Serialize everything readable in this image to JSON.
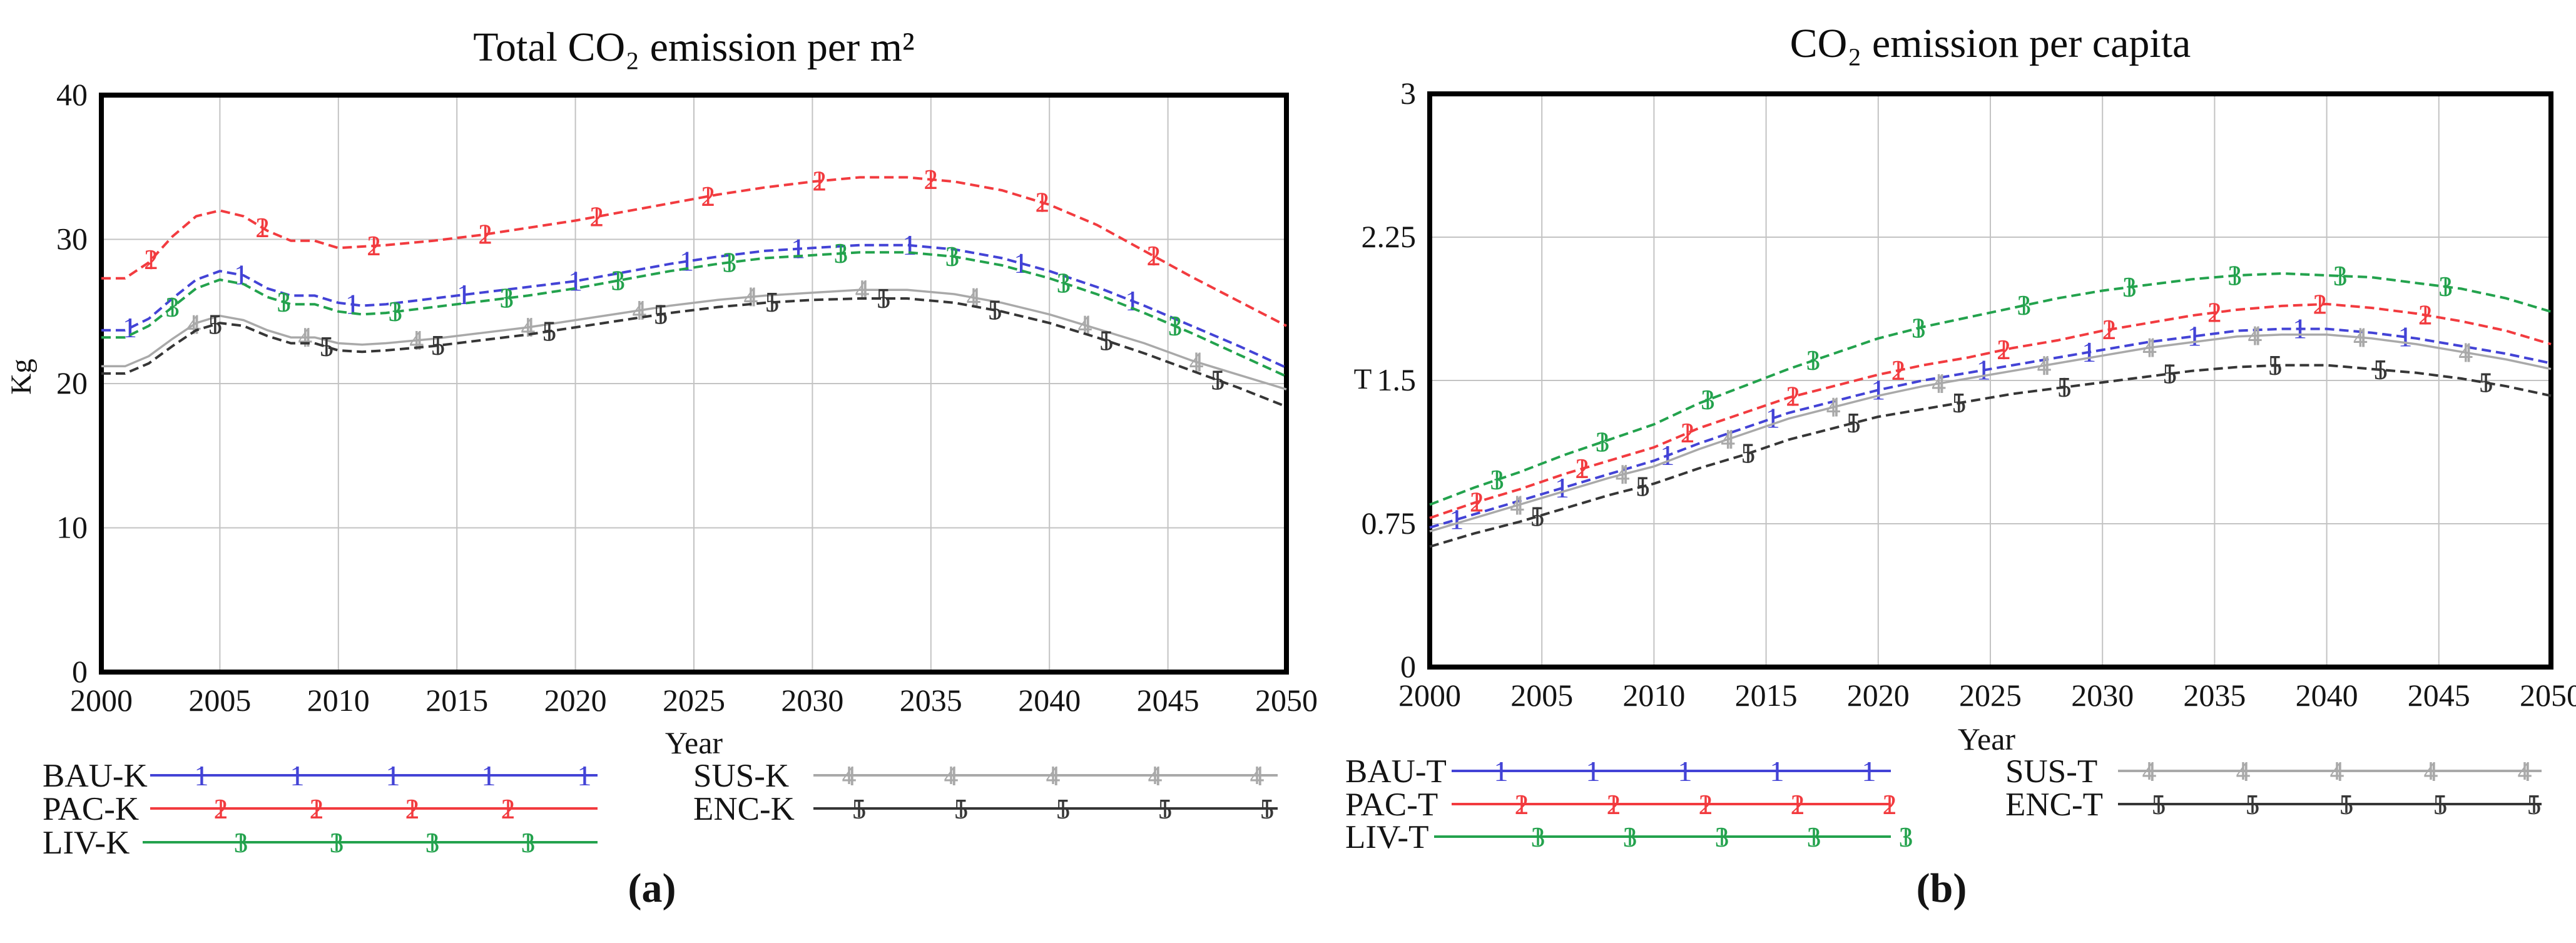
{
  "captions": {
    "a": "(a)",
    "b": "(b)"
  },
  "chart_data": [
    {
      "type": "line",
      "title": "Total CO₂ emission per m²",
      "xlabel": "Year",
      "ylabel": "Kg",
      "xlim": [
        2000,
        2050
      ],
      "ylim": [
        0,
        40
      ],
      "x_ticks": [
        2000,
        2005,
        2010,
        2015,
        2020,
        2025,
        2030,
        2035,
        2040,
        2045,
        2050
      ],
      "y_ticks": [
        0,
        10,
        20,
        30,
        40
      ],
      "grid": true,
      "legend_position": "below",
      "x": [
        2000,
        2001,
        2002,
        2003,
        2004,
        2005,
        2006,
        2007,
        2008,
        2009,
        2010,
        2011,
        2012,
        2014,
        2016,
        2018,
        2020,
        2022,
        2024,
        2026,
        2028,
        2030,
        2032,
        2034,
        2036,
        2038,
        2040,
        2042,
        2044,
        2046,
        2048,
        2050
      ],
      "series": [
        {
          "name": "BAU-K",
          "marker": "1",
          "color": "#4343d6",
          "values": [
            23.7,
            23.7,
            24.5,
            25.9,
            27.2,
            27.8,
            27.5,
            26.6,
            26.1,
            26.1,
            25.6,
            25.4,
            25.5,
            25.9,
            26.3,
            26.7,
            27.1,
            27.7,
            28.3,
            28.8,
            29.2,
            29.4,
            29.6,
            29.6,
            29.3,
            28.7,
            27.8,
            26.7,
            25.4,
            24.0,
            22.6,
            21.1
          ]
        },
        {
          "name": "PAC-K",
          "marker": "2",
          "color": "#f23b3f",
          "values": [
            27.3,
            27.3,
            28.4,
            30.2,
            31.6,
            32.0,
            31.6,
            30.6,
            29.9,
            29.9,
            29.4,
            29.5,
            29.6,
            29.9,
            30.3,
            30.8,
            31.3,
            31.9,
            32.5,
            33.1,
            33.6,
            34.0,
            34.3,
            34.3,
            34.0,
            33.4,
            32.4,
            31.0,
            29.2,
            27.4,
            25.7,
            24.0
          ]
        },
        {
          "name": "LIV-K",
          "marker": "3",
          "color": "#23a24d",
          "values": [
            23.2,
            23.2,
            24.0,
            25.3,
            26.6,
            27.2,
            26.9,
            26.0,
            25.5,
            25.5,
            25.0,
            24.8,
            24.9,
            25.3,
            25.7,
            26.1,
            26.6,
            27.2,
            27.8,
            28.3,
            28.7,
            28.9,
            29.1,
            29.1,
            28.8,
            28.2,
            27.3,
            26.2,
            24.9,
            23.5,
            22.0,
            20.5
          ]
        },
        {
          "name": "SUS-K",
          "marker": "4",
          "color": "#a9a9a9",
          "values": [
            21.2,
            21.2,
            21.9,
            23.1,
            24.2,
            24.7,
            24.4,
            23.7,
            23.2,
            23.2,
            22.8,
            22.7,
            22.8,
            23.1,
            23.5,
            23.9,
            24.4,
            24.9,
            25.4,
            25.8,
            26.1,
            26.3,
            26.5,
            26.5,
            26.2,
            25.6,
            24.8,
            23.8,
            22.8,
            21.6,
            20.6,
            19.6
          ]
        },
        {
          "name": "ENC-K",
          "marker": "5",
          "color": "#363636",
          "values": [
            20.7,
            20.7,
            21.4,
            22.6,
            23.7,
            24.2,
            24.0,
            23.3,
            22.8,
            22.8,
            22.3,
            22.2,
            22.3,
            22.6,
            23.0,
            23.4,
            23.9,
            24.4,
            24.9,
            25.3,
            25.6,
            25.8,
            25.9,
            25.9,
            25.6,
            25.0,
            24.2,
            23.2,
            22.1,
            20.9,
            19.7,
            18.4
          ]
        }
      ],
      "legend": [
        {
          "label": "BAU-K",
          "series": "BAU-K",
          "markers": 5,
          "column": 1
        },
        {
          "label": "PAC-K",
          "series": "PAC-K",
          "markers": 4,
          "column": 1
        },
        {
          "label": "LIV-K",
          "series": "LIV-K",
          "markers": 4,
          "column": 1
        },
        {
          "label": "SUS-K",
          "series": "SUS-K",
          "markers": 5,
          "column": 2
        },
        {
          "label": "ENC-K",
          "series": "ENC-K",
          "markers": 5,
          "column": 2
        }
      ]
    },
    {
      "type": "line",
      "title": "CO₂ emission per capita",
      "xlabel": "Year",
      "ylabel": "T",
      "xlim": [
        2000,
        2050
      ],
      "ylim": [
        0,
        3
      ],
      "x_ticks": [
        2000,
        2005,
        2010,
        2015,
        2020,
        2025,
        2030,
        2035,
        2040,
        2045,
        2050
      ],
      "y_ticks": [
        0,
        0.75,
        1.5,
        2.25,
        3
      ],
      "grid": true,
      "legend_position": "below",
      "x": [
        2000,
        2002,
        2004,
        2006,
        2008,
        2010,
        2012,
        2014,
        2016,
        2018,
        2020,
        2022,
        2024,
        2026,
        2028,
        2030,
        2032,
        2034,
        2036,
        2038,
        2040,
        2042,
        2044,
        2046,
        2048,
        2050
      ],
      "series": [
        {
          "name": "BAU-T",
          "marker": "1",
          "color": "#4343d6",
          "values": [
            0.73,
            0.8,
            0.87,
            0.94,
            1.01,
            1.08,
            1.17,
            1.25,
            1.33,
            1.39,
            1.45,
            1.5,
            1.54,
            1.58,
            1.62,
            1.66,
            1.7,
            1.73,
            1.76,
            1.77,
            1.77,
            1.75,
            1.72,
            1.68,
            1.64,
            1.59
          ]
        },
        {
          "name": "PAC-T",
          "marker": "2",
          "color": "#f23b3f",
          "values": [
            0.78,
            0.86,
            0.93,
            1.01,
            1.08,
            1.15,
            1.25,
            1.33,
            1.41,
            1.47,
            1.53,
            1.58,
            1.62,
            1.67,
            1.71,
            1.76,
            1.8,
            1.84,
            1.87,
            1.89,
            1.9,
            1.88,
            1.85,
            1.81,
            1.76,
            1.69
          ]
        },
        {
          "name": "LIV-T",
          "marker": "3",
          "color": "#23a24d",
          "values": [
            0.85,
            0.94,
            1.02,
            1.11,
            1.19,
            1.27,
            1.38,
            1.47,
            1.56,
            1.64,
            1.72,
            1.78,
            1.83,
            1.88,
            1.93,
            1.97,
            2.0,
            2.03,
            2.05,
            2.06,
            2.05,
            2.04,
            2.01,
            1.98,
            1.93,
            1.86
          ]
        },
        {
          "name": "SUS-T",
          "marker": "4",
          "color": "#a9a9a9",
          "values": [
            0.71,
            0.78,
            0.85,
            0.92,
            0.99,
            1.05,
            1.14,
            1.22,
            1.3,
            1.36,
            1.42,
            1.47,
            1.51,
            1.55,
            1.59,
            1.63,
            1.67,
            1.7,
            1.73,
            1.74,
            1.74,
            1.72,
            1.69,
            1.65,
            1.61,
            1.56
          ]
        },
        {
          "name": "ENC-T",
          "marker": "5",
          "color": "#363636",
          "values": [
            0.63,
            0.7,
            0.76,
            0.83,
            0.9,
            0.96,
            1.04,
            1.11,
            1.19,
            1.25,
            1.31,
            1.35,
            1.39,
            1.43,
            1.46,
            1.49,
            1.52,
            1.55,
            1.57,
            1.58,
            1.58,
            1.56,
            1.54,
            1.51,
            1.47,
            1.42
          ]
        }
      ],
      "legend": [
        {
          "label": "BAU-T",
          "series": "BAU-T",
          "markers": 5,
          "column": 1
        },
        {
          "label": "PAC-T",
          "series": "PAC-T",
          "markers": 5,
          "column": 1
        },
        {
          "label": "LIV-T",
          "series": "LIV-T",
          "markers": 5,
          "column": 1
        },
        {
          "label": "SUS-T",
          "series": "SUS-T",
          "markers": 5,
          "column": 2
        },
        {
          "label": "ENC-T",
          "series": "ENC-T",
          "markers": 5,
          "column": 2
        }
      ]
    }
  ]
}
